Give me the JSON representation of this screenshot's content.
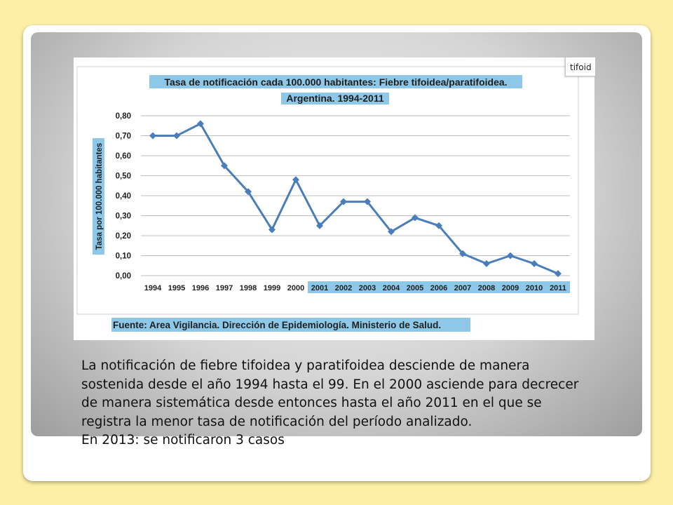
{
  "chart_data": {
    "type": "line",
    "title_line1": "Tasa de notificación cada 100.000 habitantes: Fiebre tifoidea/paratifoidea.",
    "title_line2": "Argentina. 1994-2011",
    "ylabel": "Tasa por 100.000 habitantes",
    "xlabel": "",
    "source": "Fuente: Area Vigilancia. Dirección de Epidemiología. Ministerio de Salud.",
    "ylim": [
      0,
      0.8
    ],
    "ytick_values": [
      0,
      0.1,
      0.2,
      0.3,
      0.4,
      0.5,
      0.6,
      0.7,
      0.8
    ],
    "ytick_labels": [
      "0,00",
      "0,10",
      "0,20",
      "0,30",
      "0,40",
      "0,50",
      "0,60",
      "0,70",
      "0,80"
    ],
    "categories": [
      "1994",
      "1995",
      "1996",
      "1997",
      "1998",
      "1999",
      "2000",
      "2001",
      "2002",
      "2003",
      "2004",
      "2005",
      "2006",
      "2007",
      "2008",
      "2009",
      "2010",
      "2011"
    ],
    "highlighted_categories": [
      "2001",
      "2002",
      "2003",
      "2004",
      "2005",
      "2006",
      "2007",
      "2008",
      "2009",
      "2010",
      "2011"
    ],
    "series": [
      {
        "values": [
          0.7,
          0.7,
          0.76,
          0.55,
          0.42,
          0.23,
          0.48,
          0.25,
          0.37,
          0.37,
          0.22,
          0.29,
          0.25,
          0.11,
          0.06,
          0.1,
          0.06,
          0.01
        ]
      }
    ],
    "grid": true,
    "legend": "none",
    "colors": {
      "line": "#4a7ebb",
      "highlight": "#8ec8e8",
      "grid": "#bdbdbd"
    }
  },
  "tab_label": "tifoid",
  "description": {
    "paragraph": "La notificación de fiebre tifoidea y paratifoidea desciende de manera sostenida desde el año 1994 hasta el 99. En el 2000 asciende para decrecer de manera sistemática desde entonces hasta el año 2011 en el que se registra la menor tasa de notificación del período analizado.",
    "note": "En 2013: se notificaron 3 casos"
  }
}
